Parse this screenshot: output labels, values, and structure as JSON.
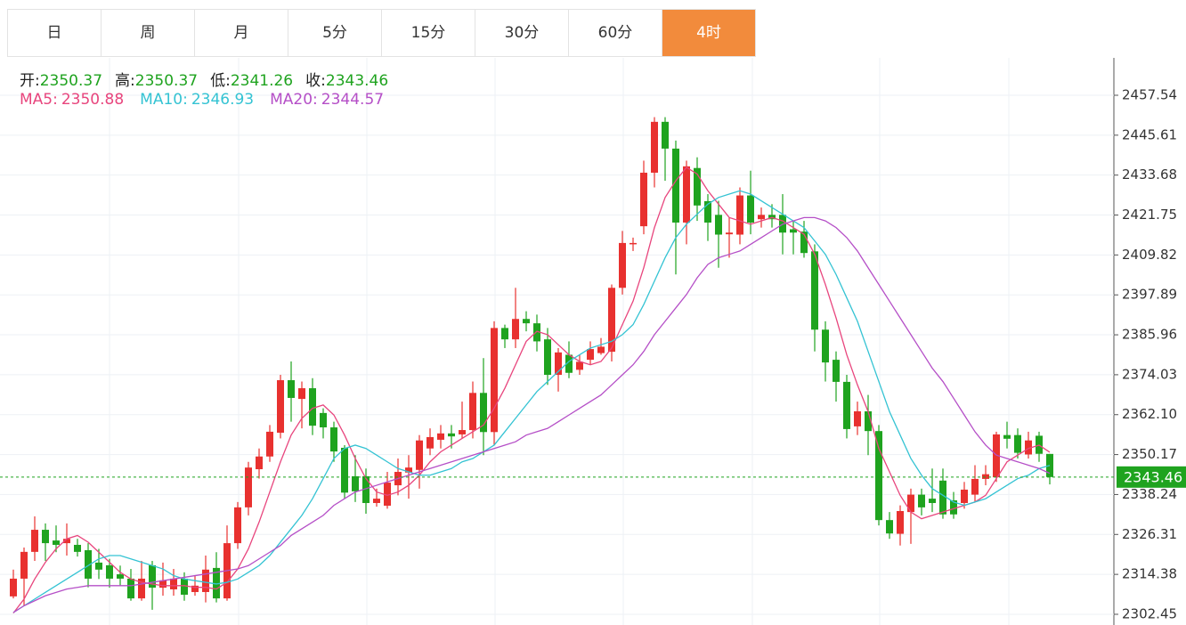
{
  "tabs": {
    "items": [
      "日",
      "周",
      "月",
      "5分",
      "15分",
      "30分",
      "60分",
      "4时"
    ],
    "active": 7
  },
  "chart_data": {
    "type": "candlestick",
    "ohlc_labels": [
      "开:",
      "高:",
      "低:",
      "收:"
    ],
    "up_color": "#e8312f",
    "down_color": "#1fa31f",
    "open": [
      2307.8,
      2313.1,
      2321.1,
      2327.7,
      2324.5,
      2323.7,
      2323.2,
      2321.6,
      2317.9,
      2317.1,
      2314.4,
      2313.1,
      2307.2,
      2317.1,
      2310.4,
      2309.9,
      2313.1,
      2309.1,
      2309.1,
      2316.3,
      2307.2,
      2323.7,
      2334.4,
      2345.8,
      2349.6,
      2356.7,
      2372.4,
      2366.8,
      2370,
      2362.6,
      2358.3,
      2352.2,
      2343.7,
      2343.7,
      2335.7,
      2334.9,
      2341,
      2344.8,
      2345.6,
      2352,
      2354.6,
      2356.5,
      2356.2,
      2357.5,
      2368.6,
      2356.9,
      2388,
      2384.6,
      2390.7,
      2389.4,
      2384.6,
      2374,
      2380,
      2375.5,
      2378.5,
      2380.5,
      2380.9,
      2400,
      2413,
      2418.4,
      2434.4,
      2449.6,
      2441.6,
      2419.5,
      2435.8,
      2425.9,
      2421.8,
      2416,
      2415.9,
      2427.6,
      2420.5,
      2421.8,
      2421.8,
      2417.5,
      2416.8,
      2410.9,
      2387.5,
      2378.5,
      2371.9,
      2358.6,
      2363.1,
      2357.2,
      2330.6,
      2326.5,
      2333,
      2338.2,
      2337,
      2342.4,
      2336.5,
      2335.7,
      2338.2,
      2342.9,
      2343.4,
      2356,
      2356,
      2350.2,
      2355.8,
      2350.37
    ],
    "high": [
      2315.8,
      2322.4,
      2331.7,
      2329.6,
      2329,
      2329.6,
      2325,
      2323.7,
      2322,
      2319,
      2317,
      2316,
      2318.4,
      2318.4,
      2317.9,
      2316,
      2315,
      2314,
      2320,
      2321,
      2329,
      2336,
      2348,
      2352,
      2359,
      2374,
      2378,
      2372,
      2373,
      2364,
      2360,
      2353,
      2350,
      2346,
      2340,
      2345,
      2349,
      2350,
      2356,
      2358,
      2359,
      2359,
      2366,
      2372,
      2379,
      2390,
      2389,
      2400,
      2393,
      2392,
      2388,
      2382,
      2384,
      2380,
      2384,
      2385,
      2401,
      2417,
      2415,
      2438,
      2451,
      2451,
      2444,
      2438,
      2439,
      2428,
      2426,
      2421,
      2430,
      2435,
      2424,
      2425,
      2428,
      2420,
      2420,
      2413,
      2390,
      2381,
      2374,
      2366,
      2368,
      2359,
      2333,
      2335,
      2340,
      2340,
      2346,
      2346,
      2339,
      2342,
      2347,
      2347,
      2357,
      2360,
      2358,
      2357,
      2357,
      2350.37
    ],
    "low": [
      2307.2,
      2305,
      2318.4,
      2318.4,
      2321,
      2320,
      2319.7,
      2310.5,
      2313,
      2310.4,
      2311,
      2306.5,
      2306.5,
      2303.8,
      2308,
      2308,
      2306.5,
      2308,
      2306,
      2306,
      2306.5,
      2322,
      2332,
      2343,
      2348,
      2355,
      2360,
      2358,
      2356,
      2355,
      2348,
      2337,
      2336,
      2332.5,
      2334.6,
      2334,
      2338,
      2337,
      2340,
      2350,
      2352,
      2352,
      2355,
      2355,
      2350,
      2353,
      2382,
      2382,
      2387,
      2381,
      2371,
      2369,
      2373,
      2374,
      2377,
      2380,
      2378,
      2398,
      2411,
      2416,
      2430,
      2432,
      2404,
      2413,
      2420,
      2414,
      2406,
      2409,
      2413,
      2416,
      2418,
      2418,
      2410,
      2410,
      2409,
      2381,
      2372,
      2366,
      2355,
      2356,
      2350,
      2329,
      2325,
      2323,
      2323.5,
      2332,
      2333,
      2331,
      2331,
      2334,
      2336,
      2341,
      2342,
      2352,
      2349,
      2349,
      2348,
      2341.26
    ],
    "close": [
      2313.1,
      2321.1,
      2327.7,
      2323.7,
      2323.2,
      2325,
      2321.1,
      2313.1,
      2315.8,
      2313.1,
      2313.1,
      2307.2,
      2313.1,
      2310.4,
      2312.6,
      2313.1,
      2308.3,
      2311,
      2315.8,
      2307.2,
      2323.7,
      2334.4,
      2346.3,
      2349.6,
      2357,
      2372.4,
      2367.1,
      2370,
      2358.8,
      2358.3,
      2351.1,
      2338.8,
      2339.2,
      2335.7,
      2337,
      2341.8,
      2345,
      2346.3,
      2354.4,
      2355.4,
      2356.5,
      2355.6,
      2357.5,
      2368.6,
      2356.9,
      2388,
      2384.6,
      2390.7,
      2389.4,
      2384,
      2374,
      2380.7,
      2374.6,
      2377.9,
      2381.7,
      2382.4,
      2400,
      2413.4,
      2413.4,
      2434.4,
      2449.6,
      2441.6,
      2419.5,
      2436.3,
      2424.6,
      2419.5,
      2415.9,
      2416.5,
      2427.6,
      2419.5,
      2421.8,
      2420.5,
      2416.5,
      2416.5,
      2410.4,
      2387.5,
      2377.7,
      2371.9,
      2357.8,
      2363.1,
      2357.2,
      2330.6,
      2326.6,
      2333.3,
      2338.2,
      2334.4,
      2335.7,
      2332.3,
      2332.3,
      2339.7,
      2342.9,
      2344.3,
      2356.2,
      2354.9,
      2350.7,
      2354.4,
      2350.4,
      2343.46
    ],
    "indicators": [
      {
        "name": "MA5:",
        "color": "#e8457d",
        "values": [
          2302.8,
          2307,
          2313,
          2318,
          2322,
          2325,
          2326,
          2324,
          2321,
          2318,
          2315,
          2313,
          2312,
          2311.5,
          2311,
          2311,
          2311,
          2310.5,
          2310.5,
          2310,
          2312,
          2316,
          2322,
          2330,
          2339,
          2348,
          2356,
          2361,
          2364,
          2365,
          2362,
          2356,
          2349,
          2343,
          2339,
          2338,
          2339,
          2341,
          2344,
          2348,
          2351,
          2353,
          2355,
          2357,
          2359,
          2364,
          2370,
          2377,
          2384,
          2387,
          2386,
          2383,
          2380,
          2378,
          2377,
          2378,
          2382,
          2389,
          2396,
          2406,
          2418,
          2427,
          2432,
          2436,
          2434,
          2429,
          2425,
          2421,
          2420,
          2419,
          2420,
          2421,
          2420,
          2418,
          2416,
          2410,
          2401,
          2391,
          2380,
          2371,
          2363,
          2352,
          2345,
          2338,
          2333,
          2331,
          2332,
          2333,
          2334,
          2335,
          2336,
          2338,
          2343,
          2348,
          2350,
          2352,
          2353,
          2350.88
        ]
      },
      {
        "name": "MA10:",
        "color": "#34c3d3",
        "values": [
          2303,
          2305,
          2307,
          2309,
          2311,
          2313,
          2315,
          2317,
          2319,
          2320,
          2320,
          2319,
          2318,
          2317,
          2316,
          2314,
          2313,
          2312.5,
          2312,
          2311.5,
          2312,
          2313,
          2315,
          2317,
          2320,
          2324,
          2328,
          2332,
          2337,
          2343,
          2349,
          2352,
          2353,
          2352,
          2350,
          2348,
          2346,
          2345,
          2344,
          2344,
          2345,
          2346,
          2348,
          2349,
          2351,
          2353,
          2357,
          2361,
          2365,
          2369,
          2372,
          2375,
          2378,
          2380,
          2382,
          2383,
          2384,
          2386,
          2389,
          2395,
          2402,
          2409,
          2415,
          2419,
          2422,
          2425,
          2427,
          2428,
          2429,
          2428,
          2426,
          2424,
          2422,
          2420,
          2418,
          2414,
          2410,
          2404,
          2397,
          2390,
          2381,
          2372,
          2363,
          2356,
          2349,
          2344,
          2340,
          2338,
          2336,
          2335,
          2336,
          2337,
          2339,
          2341,
          2343,
          2344,
          2346,
          2346.93
        ]
      },
      {
        "name": "MA20:",
        "color": "#b54fc7",
        "values": [
          2303,
          2305,
          2306.5,
          2308,
          2309,
          2310,
          2310.5,
          2311,
          2311,
          2311,
          2311,
          2311,
          2311.5,
          2312,
          2312.5,
          2313,
          2313.5,
          2314,
          2314.5,
          2315,
          2315.5,
          2316,
          2317,
          2319,
          2321,
          2323,
          2326,
          2328,
          2330,
          2332,
          2335,
          2337,
          2339,
          2340,
          2341,
          2342,
          2343,
          2344,
          2345,
          2346,
          2347,
          2348,
          2349,
          2350,
          2351,
          2352,
          2353,
          2354,
          2356,
          2357,
          2358,
          2360,
          2362,
          2364,
          2366,
          2368,
          2371,
          2374,
          2377,
          2381,
          2386,
          2390,
          2394,
          2398,
          2403,
          2407,
          2409,
          2410,
          2411,
          2413,
          2415,
          2417,
          2419,
          2420,
          2421,
          2421,
          2420,
          2418,
          2415,
          2411,
          2406,
          2401,
          2396,
          2391,
          2386,
          2381,
          2376,
          2372,
          2367,
          2362,
          2357,
          2353,
          2350,
          2349,
          2348,
          2347,
          2346,
          2344.57
        ]
      }
    ],
    "ylim": [
      2299.25,
      2468.71
    ],
    "yticks": [
      2302.45,
      2314.38,
      2326.31,
      2338.24,
      2350.17,
      {
        "value": 2362.1,
        "label": "2362.10"
      },
      2374.03,
      2385.96,
      2397.89,
      2409.82,
      2421.75,
      2433.68,
      2445.61,
      2457.54
    ],
    "grid": true
  }
}
